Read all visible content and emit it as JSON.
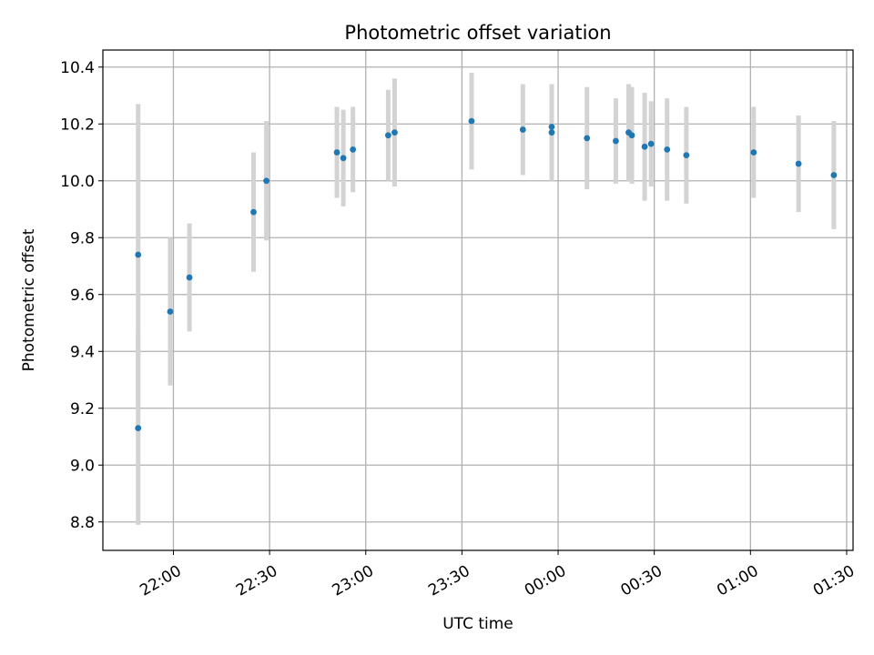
{
  "chart_data": {
    "type": "scatter",
    "title": "Photometric offset variation",
    "xlabel": "UTC time",
    "ylabel": "Photometric offset",
    "grid": true,
    "x_unit": "UTC time (HH:MM, evening to early morning)",
    "xlim": [
      "21:38",
      "01:32"
    ],
    "ylim": [
      8.7,
      10.46
    ],
    "xticks": [
      "22:00",
      "22:30",
      "23:00",
      "23:30",
      "00:00",
      "00:30",
      "01:00",
      "01:30"
    ],
    "yticks": [
      "8.8",
      "9.0",
      "9.2",
      "9.4",
      "9.6",
      "9.8",
      "10.0",
      "10.2",
      "10.4"
    ],
    "points": [
      {
        "x": "21:49",
        "y": 9.74,
        "err": 0.53
      },
      {
        "x": "21:49",
        "y": 9.13,
        "err": 0.34
      },
      {
        "x": "21:59",
        "y": 9.54,
        "err": 0.26
      },
      {
        "x": "22:05",
        "y": 9.66,
        "err": 0.19
      },
      {
        "x": "22:25",
        "y": 9.89,
        "err": 0.21
      },
      {
        "x": "22:29",
        "y": 10.0,
        "err": 0.21
      },
      {
        "x": "22:51",
        "y": 10.1,
        "err": 0.16
      },
      {
        "x": "22:53",
        "y": 10.08,
        "err": 0.17
      },
      {
        "x": "22:56",
        "y": 10.11,
        "err": 0.15
      },
      {
        "x": "23:07",
        "y": 10.16,
        "err": 0.16
      },
      {
        "x": "23:09",
        "y": 10.17,
        "err": 0.19
      },
      {
        "x": "23:33",
        "y": 10.21,
        "err": 0.17
      },
      {
        "x": "23:49",
        "y": 10.18,
        "err": 0.16
      },
      {
        "x": "23:58",
        "y": 10.19,
        "err": 0.15
      },
      {
        "x": "23:58",
        "y": 10.17,
        "err": 0.17
      },
      {
        "x": "00:09",
        "y": 10.15,
        "err": 0.18
      },
      {
        "x": "00:18",
        "y": 10.14,
        "err": 0.15
      },
      {
        "x": "00:22",
        "y": 10.17,
        "err": 0.17
      },
      {
        "x": "00:23",
        "y": 10.16,
        "err": 0.17
      },
      {
        "x": "00:27",
        "y": 10.12,
        "err": 0.19
      },
      {
        "x": "00:29",
        "y": 10.13,
        "err": 0.15
      },
      {
        "x": "00:34",
        "y": 10.11,
        "err": 0.18
      },
      {
        "x": "00:40",
        "y": 10.09,
        "err": 0.17
      },
      {
        "x": "01:01",
        "y": 10.1,
        "err": 0.16
      },
      {
        "x": "01:15",
        "y": 10.06,
        "err": 0.17
      },
      {
        "x": "01:26",
        "y": 10.02,
        "err": 0.19
      }
    ],
    "colors": {
      "points": "#1f77b4",
      "errorbars": "#d3d3d3",
      "grid": "#b0b0b0"
    }
  }
}
